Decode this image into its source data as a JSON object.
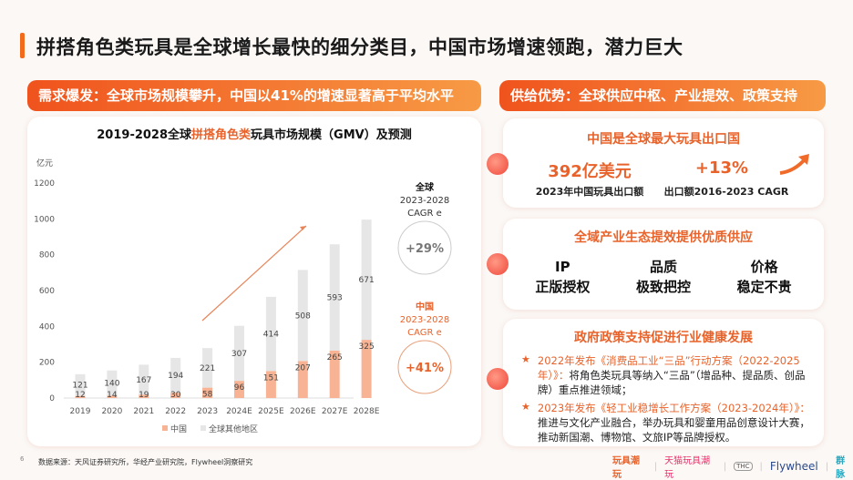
{
  "title": "拼搭角色类玩具是全球增长最快的细分类目，中国市场增速领跑，潜力巨大",
  "left": {
    "header": "需求爆发：全球市场规模攀升，中国以41%的增速显著高于平均水平"
  },
  "right": {
    "header": "供给优势：全球供应中枢、产业提效、政策支持",
    "card1": {
      "title": "中国是全球最大玩具出口国",
      "stat1": "392亿美元",
      "label1": "2023年中国玩具出口额",
      "stat2": "+13%",
      "label2": "出口额2016-2023 CAGR"
    },
    "card2": {
      "title": "全域产业生态提效提供优质供应",
      "items": [
        {
          "l1": "IP",
          "l2": "正版授权"
        },
        {
          "l1": "品质",
          "l2": "极致把控"
        },
        {
          "l1": "价格",
          "l2": "稳定不贵"
        }
      ]
    },
    "card3": {
      "title": "政府政策支持促进行业健康发展",
      "items": [
        {
          "head": "2022年发布《消费品工业“三品”行动方案（2022-2025年）》：",
          "body": "将角色类玩具等纳入“三品”（增品种、提品质、创品牌）重点推进领域；"
        },
        {
          "head": "2023年发布《轻工业稳增长工作方案（2023-2024年）》：",
          "body": "推进与文化产业融合，举办玩具和婴童用品创意设计大赛，推动新国潮、博物馆、文旅IP等品牌授权。"
        }
      ]
    }
  },
  "footer": {
    "page": "6",
    "source": "数据来源：天风证券研究所，华经产业研究院，Flywheel洞察研究",
    "logos": [
      "玩具潮玩",
      "天猫玩具潮玩",
      "THC",
      "Flywheel",
      "群脉"
    ]
  },
  "chart_data": {
    "type": "bar",
    "stacked": true,
    "title_pre": "2019-2028全球",
    "title_hl": "拼搭角色类",
    "title_post": "玩具市场规模（GMV）及预测",
    "ylabel": "亿元",
    "ylim": [
      0,
      1200
    ],
    "yticks": [
      0,
      200,
      400,
      600,
      800,
      1000,
      1200
    ],
    "categories": [
      "2019",
      "2020",
      "2021",
      "2022",
      "2023",
      "2024E",
      "2025E",
      "2026E",
      "2027E",
      "2028E"
    ],
    "series": [
      {
        "name": "中国",
        "color": "#f7b393",
        "values": [
          12,
          14,
          19,
          30,
          58,
          96,
          151,
          207,
          265,
          325
        ]
      },
      {
        "name": "全球其他地区",
        "color": "#e6e6e6",
        "values": [
          121,
          140,
          167,
          194,
          221,
          307,
          414,
          508,
          593,
          671
        ]
      }
    ],
    "annotations": {
      "global": {
        "label": "全球",
        "period": "2023-2028",
        "metric": "CAGR e",
        "value": "+29%"
      },
      "china": {
        "label": "中国",
        "period": "2023-2028",
        "metric": "CAGR e",
        "value": "+41%"
      }
    }
  }
}
